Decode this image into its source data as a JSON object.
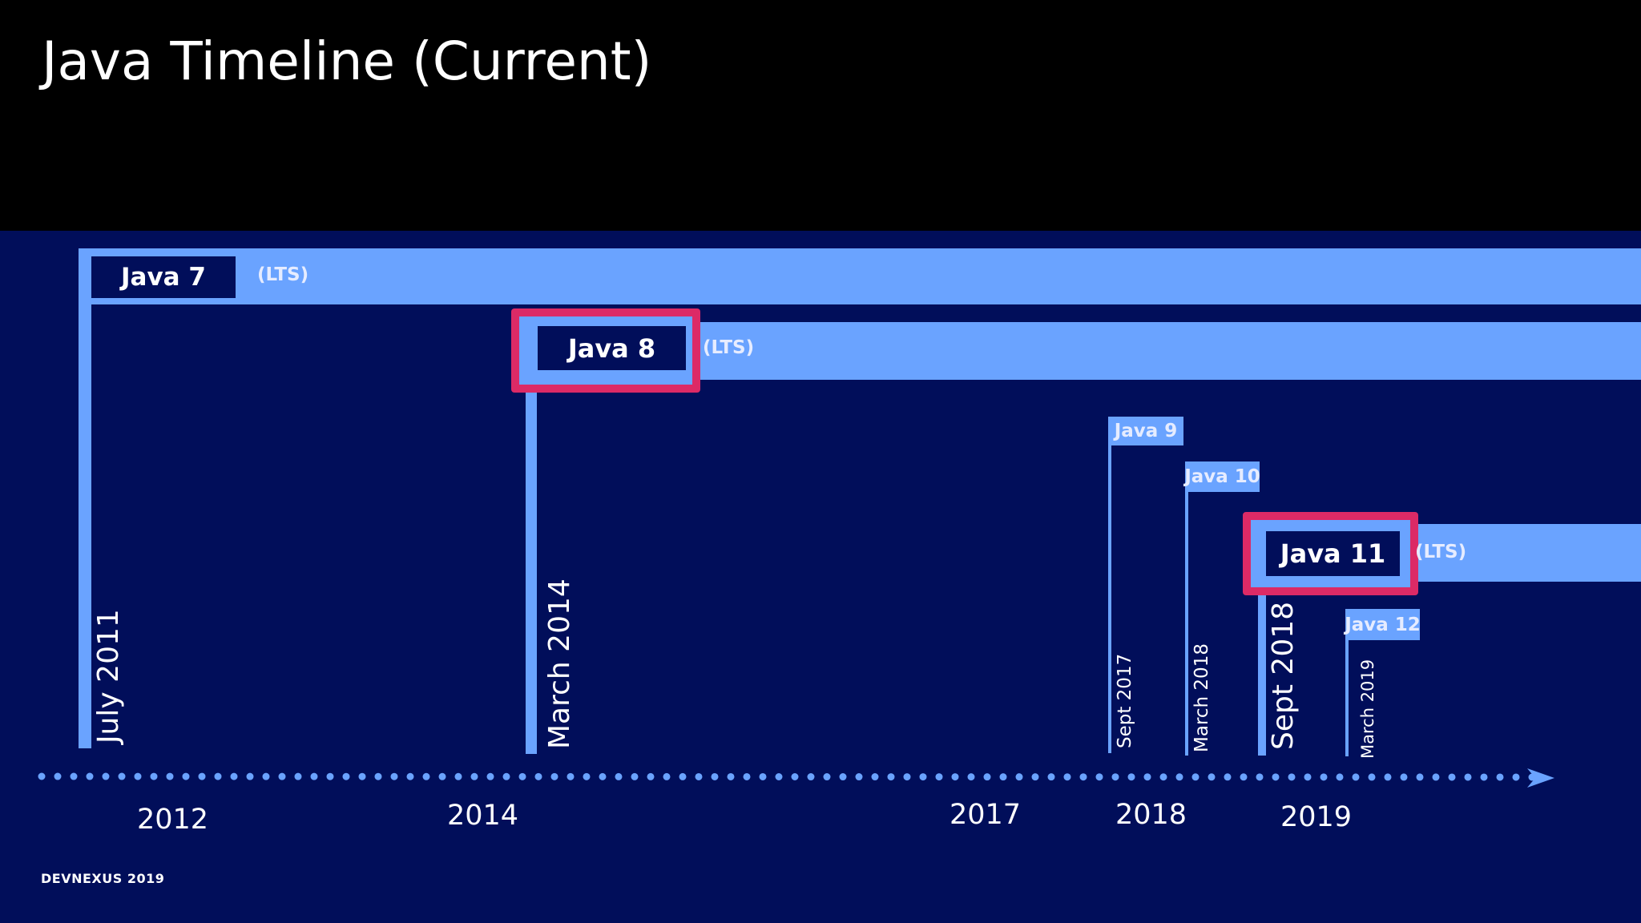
{
  "slide": {
    "title": "Java Timeline (Current)",
    "footer": "DEVNEXUS 2019"
  },
  "colors": {
    "title_background": "#000000",
    "diagram_background": "#010e5a",
    "bar": "#6aa3ff",
    "highlight": "#dc2a66",
    "text": "#ffffff"
  },
  "releases": [
    {
      "name": "Java 7",
      "tag": "(LTS)",
      "date": "July 2011"
    },
    {
      "name": "Java 8",
      "tag": "(LTS)",
      "date": "March 2014",
      "highlighted": true
    },
    {
      "name": "Java 9",
      "date": "Sept 2017"
    },
    {
      "name": "Java 10",
      "date": "March 2018"
    },
    {
      "name": "Java 11",
      "tag": "(LTS)",
      "date": "Sept 2018",
      "highlighted": true
    },
    {
      "name": "Java 12",
      "date": "March 2019"
    }
  ],
  "axis": {
    "years": [
      "2012",
      "2014",
      "2017",
      "2018",
      "2019"
    ]
  }
}
